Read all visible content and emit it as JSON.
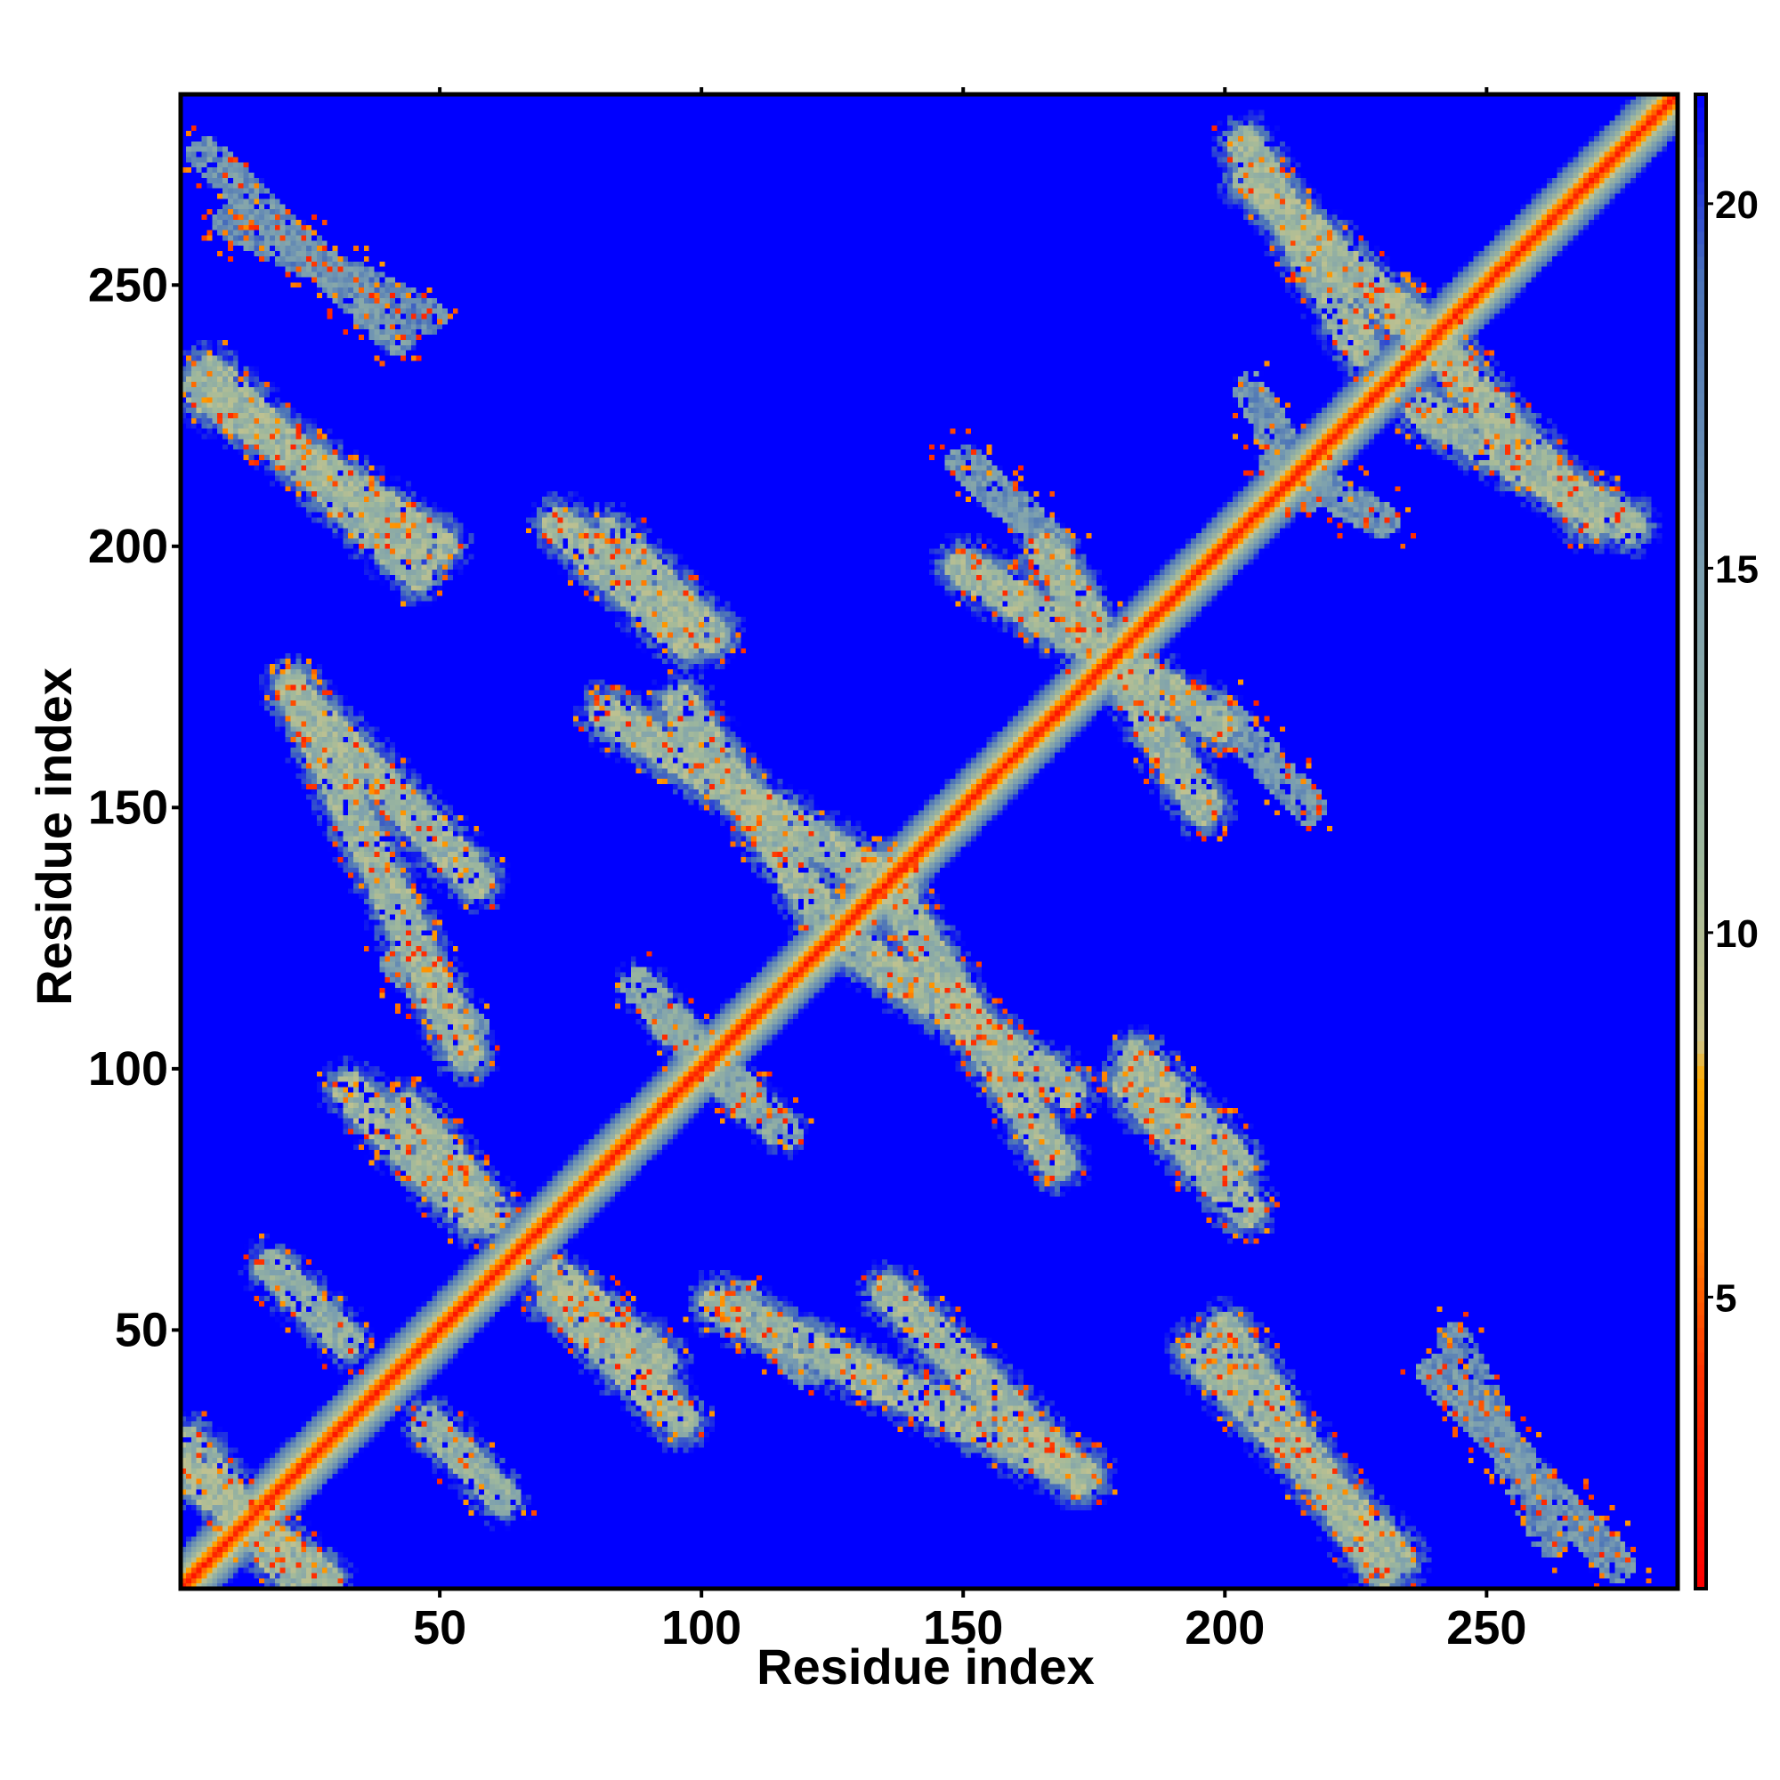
{
  "chart_data": {
    "type": "heatmap",
    "title": "",
    "xlabel": "Residue index",
    "ylabel": "Residue index",
    "x_range": [
      1,
      286
    ],
    "y_range": [
      1,
      286
    ],
    "x_ticks": [
      50,
      100,
      150,
      200,
      250
    ],
    "y_ticks": [
      50,
      100,
      150,
      200,
      250
    ],
    "colorbar": {
      "range": [
        1,
        21.5
      ],
      "ticks": [
        5,
        10,
        15,
        20
      ],
      "colors": [
        {
          "value": 1,
          "color": "#ff0000"
        },
        {
          "value": 4,
          "color": "#ff3300"
        },
        {
          "value": 6,
          "color": "#ff8800"
        },
        {
          "value": 8,
          "color": "#ffaa00"
        },
        {
          "value": 8.5,
          "color": "#cfc68a"
        },
        {
          "value": 11,
          "color": "#9fb89c"
        },
        {
          "value": 15,
          "color": "#7a9eb0"
        },
        {
          "value": 19,
          "color": "#4a72b8"
        },
        {
          "value": 21.5,
          "color": "#0000ff"
        }
      ]
    },
    "background_value": 21.5,
    "diagonal": {
      "from": 1,
      "to": 286,
      "core_value": 2,
      "width": 6
    },
    "contact_bands": [
      {
        "x1": 3,
        "y1": 22,
        "x2": 28,
        "y2": 2,
        "value": 12
      },
      {
        "x1": 18,
        "y1": 62,
        "x2": 32,
        "y2": 48,
        "value": 13
      },
      {
        "x1": 33,
        "y1": 96,
        "x2": 56,
        "y2": 72,
        "value": 12
      },
      {
        "x1": 72,
        "y1": 60,
        "x2": 92,
        "y2": 44,
        "value": 12
      },
      {
        "x1": 103,
        "y1": 55,
        "x2": 173,
        "y2": 22,
        "value": 12
      },
      {
        "x1": 195,
        "y1": 46,
        "x2": 233,
        "y2": 6,
        "value": 12
      },
      {
        "x1": 240,
        "y1": 42,
        "x2": 275,
        "y2": 5,
        "value": 16
      },
      {
        "x1": 42,
        "y1": 120,
        "x2": 56,
        "y2": 108,
        "value": 16
      },
      {
        "x1": 88,
        "y1": 116,
        "x2": 108,
        "y2": 94,
        "value": 14
      },
      {
        "x1": 128,
        "y1": 124,
        "x2": 170,
        "y2": 96,
        "value": 12
      },
      {
        "x1": 183,
        "y1": 102,
        "x2": 202,
        "y2": 82,
        "value": 12
      },
      {
        "x1": 22,
        "y1": 172,
        "x2": 57,
        "y2": 136,
        "value": 12
      },
      {
        "x1": 82,
        "y1": 168,
        "x2": 138,
        "y2": 134,
        "value": 12
      },
      {
        "x1": 150,
        "y1": 196,
        "x2": 199,
        "y2": 166,
        "value": 12
      },
      {
        "x1": 73,
        "y1": 204,
        "x2": 97,
        "y2": 182,
        "value": 12
      },
      {
        "x1": 4,
        "y1": 230,
        "x2": 50,
        "y2": 200,
        "value": 12
      },
      {
        "x1": 205,
        "y1": 270,
        "x2": 245,
        "y2": 234,
        "value": 12
      },
      {
        "x1": 238,
        "y1": 226,
        "x2": 277,
        "y2": 204,
        "value": 12
      },
      {
        "x1": 150,
        "y1": 216,
        "x2": 168,
        "y2": 200,
        "value": 16
      },
      {
        "x1": 210,
        "y1": 216,
        "x2": 230,
        "y2": 205,
        "value": 16
      },
      {
        "x1": 10,
        "y1": 262,
        "x2": 48,
        "y2": 244,
        "value": 17
      }
    ]
  }
}
